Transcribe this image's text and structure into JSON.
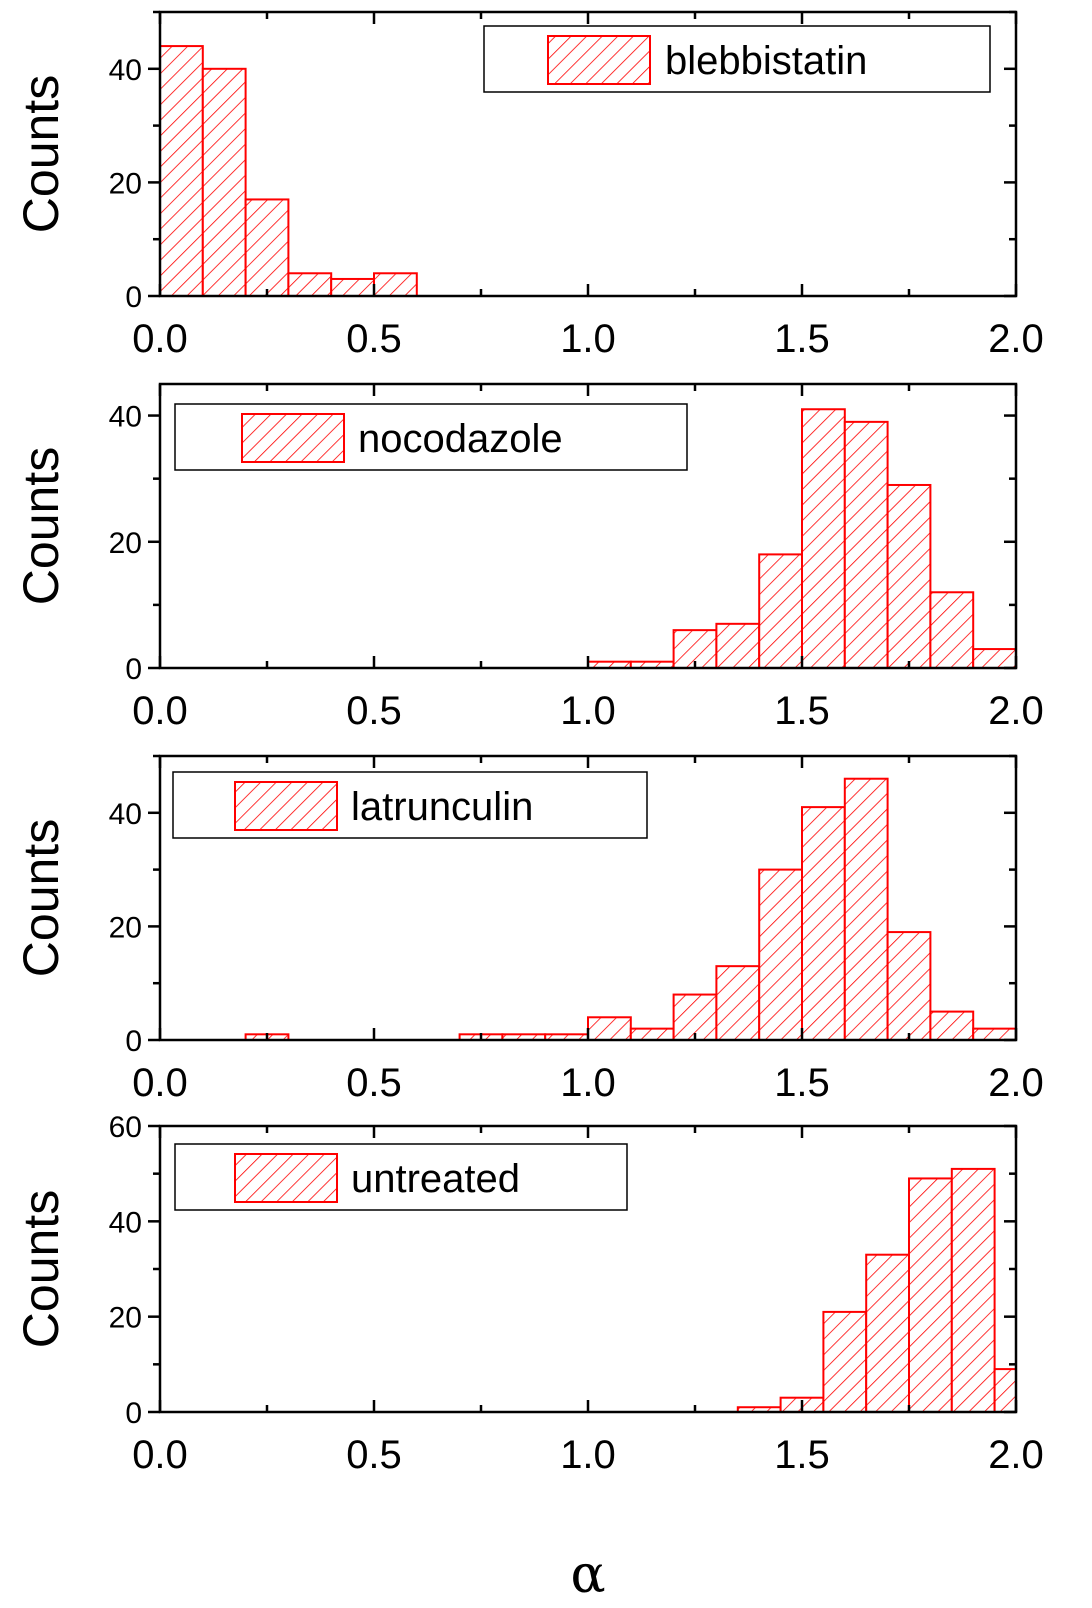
{
  "chart_data": [
    {
      "type": "bar",
      "legend": "blebbistatin",
      "ylabel": "Counts",
      "xlim": [
        0,
        2.0
      ],
      "ylim": [
        0,
        50
      ],
      "xticks": [
        "0.0",
        "0.5",
        "1.0",
        "1.5",
        "2.0"
      ],
      "yticks": [
        "0",
        "20",
        "40"
      ],
      "legend_position": "top-right",
      "bins": [
        {
          "x0": 0.0,
          "x1": 0.1,
          "count": 44
        },
        {
          "x0": 0.1,
          "x1": 0.2,
          "count": 40
        },
        {
          "x0": 0.2,
          "x1": 0.3,
          "count": 17
        },
        {
          "x0": 0.3,
          "x1": 0.4,
          "count": 4
        },
        {
          "x0": 0.4,
          "x1": 0.5,
          "count": 3
        },
        {
          "x0": 0.5,
          "x1": 0.6,
          "count": 4
        }
      ]
    },
    {
      "type": "bar",
      "legend": "nocodazole",
      "ylabel": "Counts",
      "xlim": [
        0,
        2.0
      ],
      "ylim": [
        0,
        45
      ],
      "xticks": [
        "0.0",
        "0.5",
        "1.0",
        "1.5",
        "2.0"
      ],
      "yticks": [
        "0",
        "20",
        "40"
      ],
      "legend_position": "top-left",
      "bins": [
        {
          "x0": 1.0,
          "x1": 1.1,
          "count": 1
        },
        {
          "x0": 1.1,
          "x1": 1.2,
          "count": 1
        },
        {
          "x0": 1.2,
          "x1": 1.3,
          "count": 6
        },
        {
          "x0": 1.3,
          "x1": 1.4,
          "count": 7
        },
        {
          "x0": 1.4,
          "x1": 1.5,
          "count": 18
        },
        {
          "x0": 1.5,
          "x1": 1.6,
          "count": 41
        },
        {
          "x0": 1.6,
          "x1": 1.7,
          "count": 39
        },
        {
          "x0": 1.7,
          "x1": 1.8,
          "count": 29
        },
        {
          "x0": 1.8,
          "x1": 1.9,
          "count": 12
        },
        {
          "x0": 1.9,
          "x1": 2.0,
          "count": 3
        }
      ]
    },
    {
      "type": "bar",
      "legend": "latrunculin",
      "ylabel": "Counts",
      "xlim": [
        0,
        2.0
      ],
      "ylim": [
        0,
        50
      ],
      "xticks": [
        "0.0",
        "0.5",
        "1.0",
        "1.5",
        "2.0"
      ],
      "yticks": [
        "0",
        "20",
        "40"
      ],
      "legend_position": "top-left",
      "bins": [
        {
          "x0": 0.2,
          "x1": 0.3,
          "count": 1
        },
        {
          "x0": 0.7,
          "x1": 0.8,
          "count": 1
        },
        {
          "x0": 0.8,
          "x1": 0.9,
          "count": 1
        },
        {
          "x0": 0.9,
          "x1": 1.0,
          "count": 1
        },
        {
          "x0": 1.0,
          "x1": 1.1,
          "count": 4
        },
        {
          "x0": 1.1,
          "x1": 1.2,
          "count": 2
        },
        {
          "x0": 1.2,
          "x1": 1.3,
          "count": 8
        },
        {
          "x0": 1.3,
          "x1": 1.4,
          "count": 13
        },
        {
          "x0": 1.4,
          "x1": 1.5,
          "count": 30
        },
        {
          "x0": 1.5,
          "x1": 1.6,
          "count": 41
        },
        {
          "x0": 1.6,
          "x1": 1.7,
          "count": 46
        },
        {
          "x0": 1.7,
          "x1": 1.8,
          "count": 19
        },
        {
          "x0": 1.8,
          "x1": 1.9,
          "count": 5
        },
        {
          "x0": 1.9,
          "x1": 2.0,
          "count": 2
        }
      ]
    },
    {
      "type": "bar",
      "legend": "untreated",
      "ylabel": "Counts",
      "xlabel": "α",
      "xlim": [
        0,
        2.0
      ],
      "ylim": [
        0,
        60
      ],
      "xticks": [
        "0.0",
        "0.5",
        "1.0",
        "1.5",
        "2.0"
      ],
      "yticks": [
        "0",
        "20",
        "40",
        "60"
      ],
      "legend_position": "top-left",
      "bins": [
        {
          "x0": 1.35,
          "x1": 1.45,
          "count": 1
        },
        {
          "x0": 1.45,
          "x1": 1.55,
          "count": 3
        },
        {
          "x0": 1.55,
          "x1": 1.65,
          "count": 21
        },
        {
          "x0": 1.65,
          "x1": 1.75,
          "count": 33
        },
        {
          "x0": 1.75,
          "x1": 1.85,
          "count": 49
        },
        {
          "x0": 1.85,
          "x1": 1.95,
          "count": 51
        },
        {
          "x0": 1.95,
          "x1": 2.05,
          "count": 9
        }
      ]
    }
  ],
  "colors": {
    "bar_stroke": "#ff0000",
    "hatch": "#ff0000",
    "axis": "#000000"
  }
}
